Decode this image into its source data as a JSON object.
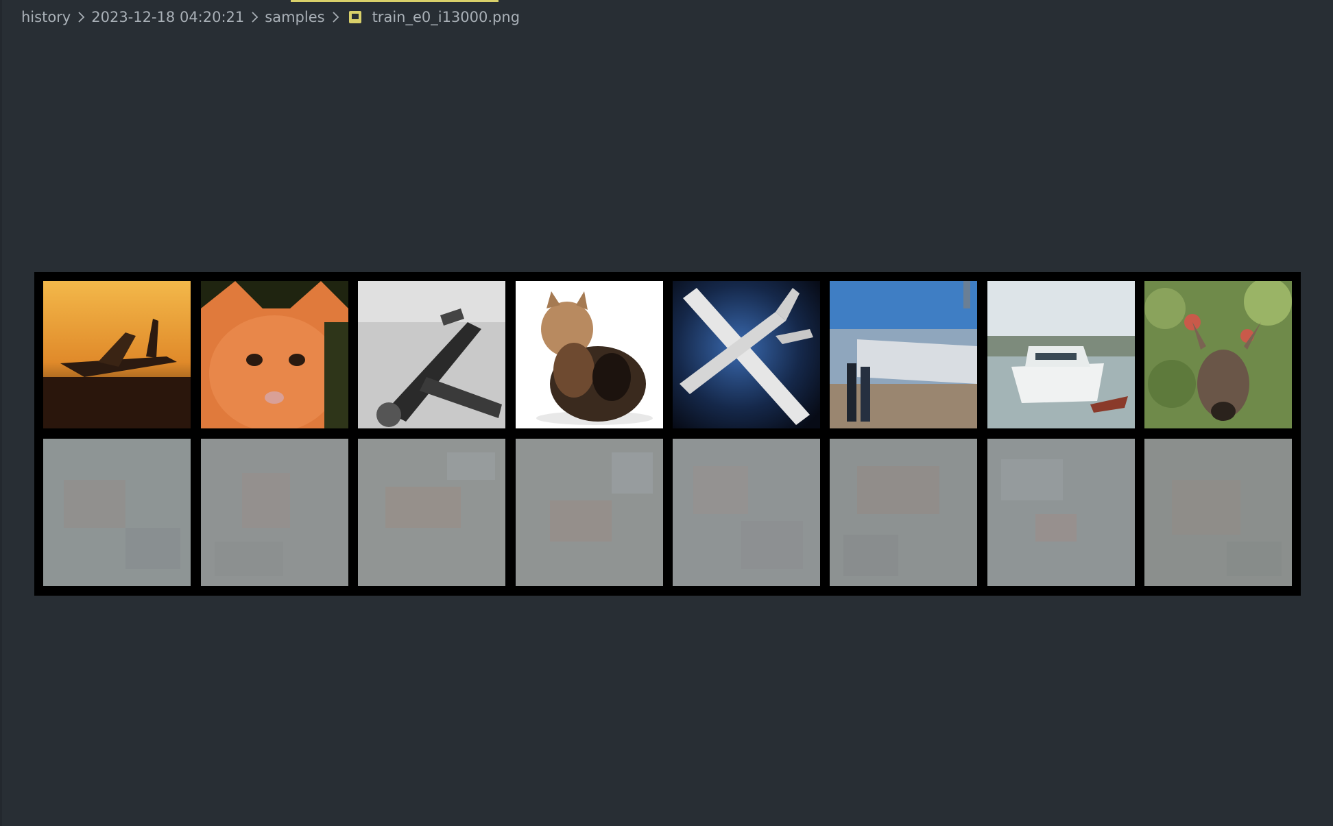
{
  "breadcrumb": {
    "items": [
      "history",
      "2023-12-18 04:20:21",
      "samples"
    ],
    "file": "train_e0_i13000.png",
    "file_icon": "image-file-icon"
  },
  "viewer": {
    "image_name": "train_e0_i13000.png",
    "grid": {
      "rows": 2,
      "cols": 8,
      "top_row": [
        "airplane",
        "cat",
        "airplane",
        "cat",
        "airplane",
        "ship",
        "ship",
        "deer"
      ],
      "bottom_row": [
        "noise",
        "noise",
        "noise",
        "noise",
        "noise",
        "noise",
        "noise",
        "noise"
      ]
    }
  },
  "colors": {
    "background": "#282e34",
    "text": "#a9b0b7",
    "accent": "#d9d06a",
    "frame": "#000000"
  }
}
